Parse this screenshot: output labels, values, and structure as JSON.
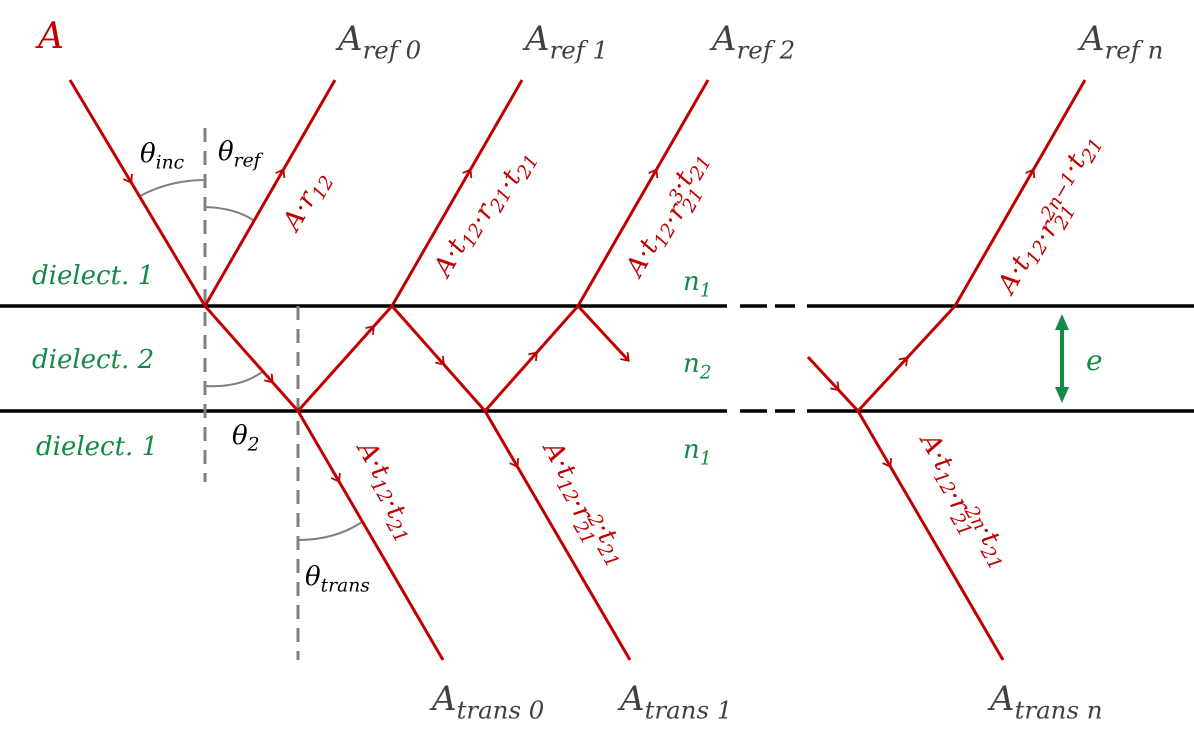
{
  "colors": {
    "ray": "#c00000",
    "label": "#404040",
    "medium": "#138a46",
    "interface": "#000000",
    "normal": "#7f7f7f",
    "angle_arc": "#808080"
  },
  "beams": {
    "incident": [
      [
        "A",
        "",
        ""
      ]
    ],
    "ref0": [
      [
        "A",
        "ref 0",
        ""
      ]
    ],
    "ref1": [
      [
        "A",
        "ref 1",
        ""
      ]
    ],
    "ref2": [
      [
        "A",
        "ref 2",
        ""
      ]
    ],
    "refn": [
      [
        "A",
        "ref n",
        ""
      ]
    ],
    "trans0": [
      [
        "A",
        "trans 0",
        ""
      ]
    ],
    "trans1": [
      [
        "A",
        "trans 1",
        ""
      ]
    ],
    "transn": [
      [
        "A",
        "trans n",
        ""
      ]
    ]
  },
  "angles": {
    "inc": [
      [
        "θ",
        "inc",
        ""
      ]
    ],
    "ref": [
      [
        "θ",
        "ref",
        ""
      ]
    ],
    "layer": [
      [
        "θ",
        "2",
        ""
      ]
    ],
    "trans": [
      [
        "θ",
        "trans",
        ""
      ]
    ]
  },
  "media": {
    "top": [
      [
        "dielect. 1",
        "",
        ""
      ]
    ],
    "middle": [
      [
        "dielect. 2",
        "",
        ""
      ]
    ],
    "bottom": [
      [
        "dielect. 1",
        "",
        ""
      ]
    ],
    "n_top": [
      [
        "n",
        "1",
        ""
      ]
    ],
    "n_middle": [
      [
        "n",
        "2",
        ""
      ]
    ],
    "n_bottom": [
      [
        "n",
        "1",
        ""
      ]
    ],
    "thickness": [
      [
        "e",
        "",
        ""
      ]
    ]
  },
  "amplitudes": {
    "ref0": [
      [
        "A·r",
        "12",
        ""
      ]
    ],
    "ref1": [
      [
        "A·t",
        "12",
        ""
      ],
      [
        "·r",
        "21",
        ""
      ],
      [
        "·t",
        "21",
        ""
      ]
    ],
    "ref2": [
      [
        "A·t",
        "12",
        ""
      ],
      [
        "·r",
        "21",
        "3"
      ],
      [
        "·t",
        "21",
        ""
      ]
    ],
    "refn": [
      [
        "A·t",
        "12",
        ""
      ],
      [
        "·r",
        "21",
        "2n−1"
      ],
      [
        "·t",
        "21",
        ""
      ]
    ],
    "trans0": [
      [
        "A·t",
        "12",
        ""
      ],
      [
        "·t",
        "21",
        ""
      ]
    ],
    "trans1": [
      [
        "A·t",
        "12",
        ""
      ],
      [
        "·r",
        "21",
        "2"
      ],
      [
        "·t",
        "21",
        ""
      ]
    ],
    "transn": [
      [
        "A·t",
        "12",
        ""
      ],
      [
        "·r",
        "21",
        "2n"
      ],
      [
        "·t",
        "21",
        ""
      ]
    ]
  }
}
